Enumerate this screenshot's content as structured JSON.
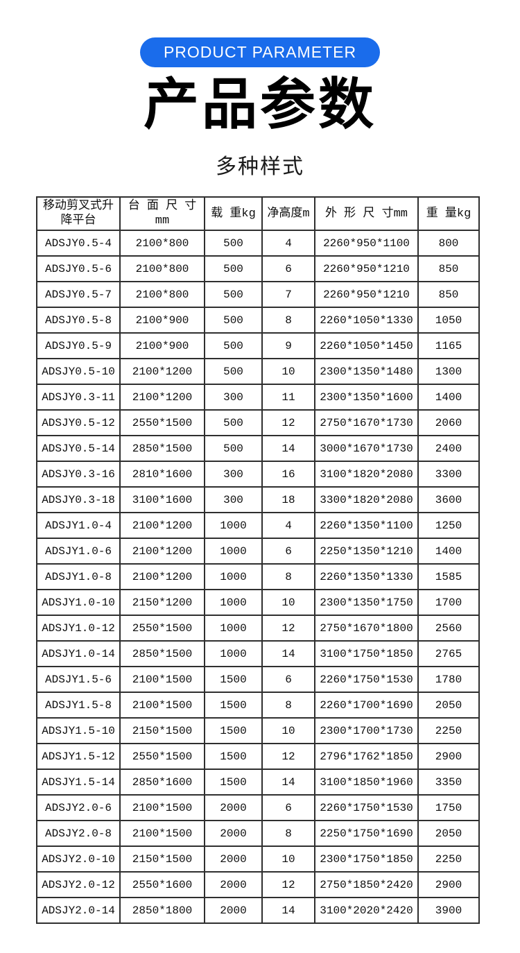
{
  "colors": {
    "accent": "#1a6ceb",
    "badge_text": "#ffffff",
    "table_border": "#2f2f2f",
    "text": "#111111"
  },
  "badge": {
    "label": "PRODUCT PARAMETER"
  },
  "title": "产品参数",
  "subtitle": "多种样式",
  "table": {
    "columns": [
      "移动剪叉式升降平台",
      "台 面 尺 寸mm",
      "载 重kg",
      "净高度m",
      "外 形 尺 寸mm",
      "重 量kg"
    ],
    "rows": [
      [
        "ADSJY0.5-4",
        "2100*800",
        "500",
        "4",
        "2260*950*1100",
        "800"
      ],
      [
        "ADSJY0.5-6",
        "2100*800",
        "500",
        "6",
        "2260*950*1210",
        "850"
      ],
      [
        "ADSJY0.5-7",
        "2100*800",
        "500",
        "7",
        "2260*950*1210",
        "850"
      ],
      [
        "ADSJY0.5-8",
        "2100*900",
        "500",
        "8",
        "2260*1050*1330",
        "1050"
      ],
      [
        "ADSJY0.5-9",
        "2100*900",
        "500",
        "9",
        "2260*1050*1450",
        "1165"
      ],
      [
        "ADSJY0.5-10",
        "2100*1200",
        "500",
        "10",
        "2300*1350*1480",
        "1300"
      ],
      [
        "ADSJY0.3-11",
        "2100*1200",
        "300",
        "11",
        "2300*1350*1600",
        "1400"
      ],
      [
        "ADSJY0.5-12",
        "2550*1500",
        "500",
        "12",
        "2750*1670*1730",
        "2060"
      ],
      [
        "ADSJY0.5-14",
        "2850*1500",
        "500",
        "14",
        "3000*1670*1730",
        "2400"
      ],
      [
        "ADSJY0.3-16",
        "2810*1600",
        "300",
        "16",
        "3100*1820*2080",
        "3300"
      ],
      [
        "ADSJY0.3-18",
        "3100*1600",
        "300",
        "18",
        "3300*1820*2080",
        "3600"
      ],
      [
        "ADSJY1.0-4",
        "2100*1200",
        "1000",
        "4",
        "2260*1350*1100",
        "1250"
      ],
      [
        "ADSJY1.0-6",
        "2100*1200",
        "1000",
        "6",
        "2250*1350*1210",
        "1400"
      ],
      [
        "ADSJY1.0-8",
        "2100*1200",
        "1000",
        "8",
        "2260*1350*1330",
        "1585"
      ],
      [
        "ADSJY1.0-10",
        "2150*1200",
        "1000",
        "10",
        "2300*1350*1750",
        "1700"
      ],
      [
        "ADSJY1.0-12",
        "2550*1500",
        "1000",
        "12",
        "2750*1670*1800",
        "2560"
      ],
      [
        "ADSJY1.0-14",
        "2850*1500",
        "1000",
        "14",
        "3100*1750*1850",
        "2765"
      ],
      [
        "ADSJY1.5-6",
        "2100*1500",
        "1500",
        "6",
        "2260*1750*1530",
        "1780"
      ],
      [
        "ADSJY1.5-8",
        "2100*1500",
        "1500",
        "8",
        "2260*1700*1690",
        "2050"
      ],
      [
        "ADSJY1.5-10",
        "2150*1500",
        "1500",
        "10",
        "2300*1700*1730",
        "2250"
      ],
      [
        "ADSJY1.5-12",
        "2550*1500",
        "1500",
        "12",
        "2796*1762*1850",
        "2900"
      ],
      [
        "ADSJY1.5-14",
        "2850*1600",
        "1500",
        "14",
        "3100*1850*1960",
        "3350"
      ],
      [
        "ADSJY2.0-6",
        "2100*1500",
        "2000",
        "6",
        "2260*1750*1530",
        "1750"
      ],
      [
        "ADSJY2.0-8",
        "2100*1500",
        "2000",
        "8",
        "2250*1750*1690",
        "2050"
      ],
      [
        "ADSJY2.0-10",
        "2150*1500",
        "2000",
        "10",
        "2300*1750*1850",
        "2250"
      ],
      [
        "ADSJY2.0-12",
        "2550*1600",
        "2000",
        "12",
        "2750*1850*2420",
        "2900"
      ],
      [
        "ADSJY2.0-14",
        "2850*1800",
        "2000",
        "14",
        "3100*2020*2420",
        "3900"
      ]
    ]
  }
}
